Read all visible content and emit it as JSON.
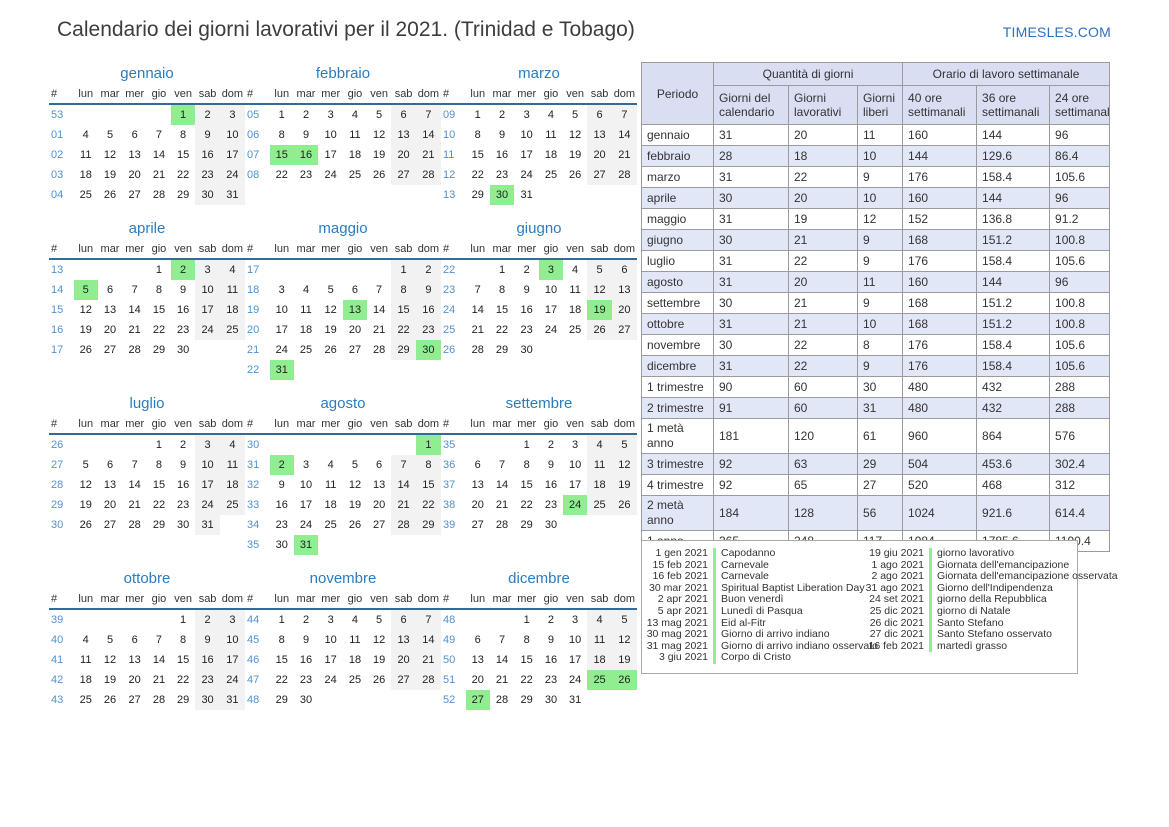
{
  "page": {
    "title": "Calendario dei giorni lavorativi per il 2021. (Trinidad e Tobago)",
    "site": "TIMESLES.COM"
  },
  "colors": {
    "accent_blue": "#2a7cc0",
    "week_number_blue": "#5191d0",
    "holiday_green": "#90ee90",
    "weekend_grey": "#f2f2f2",
    "table_header_bg": "#d9def2",
    "table_alt_row_bg": "#e2e7f8",
    "header_rule": "#366a96"
  },
  "calendar": {
    "day_headers": [
      "#",
      "lun",
      "mar",
      "mer",
      "gio",
      "ven",
      "sab",
      "dom"
    ],
    "months": [
      {
        "name": "gennaio",
        "holidays": [
          1
        ],
        "weeks": [
          {
            "n": "53",
            "d": [
              null,
              null,
              null,
              null,
              1,
              2,
              3
            ]
          },
          {
            "n": "01",
            "d": [
              4,
              5,
              6,
              7,
              8,
              9,
              10
            ]
          },
          {
            "n": "02",
            "d": [
              11,
              12,
              13,
              14,
              15,
              16,
              17
            ]
          },
          {
            "n": "03",
            "d": [
              18,
              19,
              20,
              21,
              22,
              23,
              24
            ]
          },
          {
            "n": "04",
            "d": [
              25,
              26,
              27,
              28,
              29,
              30,
              31
            ]
          }
        ]
      },
      {
        "name": "febbraio",
        "holidays": [
          15,
          16
        ],
        "weeks": [
          {
            "n": "05",
            "d": [
              1,
              2,
              3,
              4,
              5,
              6,
              7
            ]
          },
          {
            "n": "06",
            "d": [
              8,
              9,
              10,
              11,
              12,
              13,
              14
            ]
          },
          {
            "n": "07",
            "d": [
              15,
              16,
              17,
              18,
              19,
              20,
              21
            ]
          },
          {
            "n": "08",
            "d": [
              22,
              23,
              24,
              25,
              26,
              27,
              28
            ]
          }
        ]
      },
      {
        "name": "marzo",
        "holidays": [
          30
        ],
        "weeks": [
          {
            "n": "09",
            "d": [
              1,
              2,
              3,
              4,
              5,
              6,
              7
            ]
          },
          {
            "n": "10",
            "d": [
              8,
              9,
              10,
              11,
              12,
              13,
              14
            ]
          },
          {
            "n": "11",
            "d": [
              15,
              16,
              17,
              18,
              19,
              20,
              21
            ]
          },
          {
            "n": "12",
            "d": [
              22,
              23,
              24,
              25,
              26,
              27,
              28
            ]
          },
          {
            "n": "13",
            "d": [
              29,
              30,
              31,
              null,
              null,
              null,
              null
            ]
          }
        ]
      },
      {
        "name": "aprile",
        "holidays": [
          2,
          5
        ],
        "weeks": [
          {
            "n": "13",
            "d": [
              null,
              null,
              null,
              1,
              2,
              3,
              4
            ]
          },
          {
            "n": "14",
            "d": [
              5,
              6,
              7,
              8,
              9,
              10,
              11
            ]
          },
          {
            "n": "15",
            "d": [
              12,
              13,
              14,
              15,
              16,
              17,
              18
            ]
          },
          {
            "n": "16",
            "d": [
              19,
              20,
              21,
              22,
              23,
              24,
              25
            ]
          },
          {
            "n": "17",
            "d": [
              26,
              27,
              28,
              29,
              30,
              null,
              null
            ]
          }
        ]
      },
      {
        "name": "maggio",
        "holidays": [
          13,
          30,
          31
        ],
        "weeks": [
          {
            "n": "17",
            "d": [
              null,
              null,
              null,
              null,
              null,
              1,
              2
            ]
          },
          {
            "n": "18",
            "d": [
              3,
              4,
              5,
              6,
              7,
              8,
              9
            ]
          },
          {
            "n": "19",
            "d": [
              10,
              11,
              12,
              13,
              14,
              15,
              16
            ]
          },
          {
            "n": "20",
            "d": [
              17,
              18,
              19,
              20,
              21,
              22,
              23
            ]
          },
          {
            "n": "21",
            "d": [
              24,
              25,
              26,
              27,
              28,
              29,
              30
            ]
          },
          {
            "n": "22",
            "d": [
              31,
              null,
              null,
              null,
              null,
              null,
              null
            ]
          }
        ]
      },
      {
        "name": "giugno",
        "holidays": [
          3,
          19
        ],
        "weeks": [
          {
            "n": "22",
            "d": [
              null,
              1,
              2,
              3,
              4,
              5,
              6
            ]
          },
          {
            "n": "23",
            "d": [
              7,
              8,
              9,
              10,
              11,
              12,
              13
            ]
          },
          {
            "n": "24",
            "d": [
              14,
              15,
              16,
              17,
              18,
              19,
              20
            ]
          },
          {
            "n": "25",
            "d": [
              21,
              22,
              23,
              24,
              25,
              26,
              27
            ]
          },
          {
            "n": "26",
            "d": [
              28,
              29,
              30,
              null,
              null,
              null,
              null
            ]
          }
        ]
      },
      {
        "name": "luglio",
        "holidays": [],
        "weeks": [
          {
            "n": "26",
            "d": [
              null,
              null,
              null,
              1,
              2,
              3,
              4
            ]
          },
          {
            "n": "27",
            "d": [
              5,
              6,
              7,
              8,
              9,
              10,
              11
            ]
          },
          {
            "n": "28",
            "d": [
              12,
              13,
              14,
              15,
              16,
              17,
              18
            ]
          },
          {
            "n": "29",
            "d": [
              19,
              20,
              21,
              22,
              23,
              24,
              25
            ]
          },
          {
            "n": "30",
            "d": [
              26,
              27,
              28,
              29,
              30,
              31,
              null
            ]
          }
        ]
      },
      {
        "name": "agosto",
        "holidays": [
          1,
          2,
          31
        ],
        "weeks": [
          {
            "n": "30",
            "d": [
              null,
              null,
              null,
              null,
              null,
              null,
              1
            ]
          },
          {
            "n": "31",
            "d": [
              2,
              3,
              4,
              5,
              6,
              7,
              8
            ]
          },
          {
            "n": "32",
            "d": [
              9,
              10,
              11,
              12,
              13,
              14,
              15
            ]
          },
          {
            "n": "33",
            "d": [
              16,
              17,
              18,
              19,
              20,
              21,
              22
            ]
          },
          {
            "n": "34",
            "d": [
              23,
              24,
              25,
              26,
              27,
              28,
              29
            ]
          },
          {
            "n": "35",
            "d": [
              30,
              31,
              null,
              null,
              null,
              null,
              null
            ]
          }
        ]
      },
      {
        "name": "settembre",
        "holidays": [
          24
        ],
        "weeks": [
          {
            "n": "35",
            "d": [
              null,
              null,
              1,
              2,
              3,
              4,
              5
            ]
          },
          {
            "n": "36",
            "d": [
              6,
              7,
              8,
              9,
              10,
              11,
              12
            ]
          },
          {
            "n": "37",
            "d": [
              13,
              14,
              15,
              16,
              17,
              18,
              19
            ]
          },
          {
            "n": "38",
            "d": [
              20,
              21,
              22,
              23,
              24,
              25,
              26
            ]
          },
          {
            "n": "39",
            "d": [
              27,
              28,
              29,
              30,
              null,
              null,
              null
            ]
          }
        ]
      },
      {
        "name": "ottobre",
        "holidays": [],
        "weeks": [
          {
            "n": "39",
            "d": [
              null,
              null,
              null,
              null,
              1,
              2,
              3
            ]
          },
          {
            "n": "40",
            "d": [
              4,
              5,
              6,
              7,
              8,
              9,
              10
            ]
          },
          {
            "n": "41",
            "d": [
              11,
              12,
              13,
              14,
              15,
              16,
              17
            ]
          },
          {
            "n": "42",
            "d": [
              18,
              19,
              20,
              21,
              22,
              23,
              24
            ]
          },
          {
            "n": "43",
            "d": [
              25,
              26,
              27,
              28,
              29,
              30,
              31
            ]
          }
        ]
      },
      {
        "name": "novembre",
        "holidays": [],
        "weeks": [
          {
            "n": "44",
            "d": [
              1,
              2,
              3,
              4,
              5,
              6,
              7
            ]
          },
          {
            "n": "45",
            "d": [
              8,
              9,
              10,
              11,
              12,
              13,
              14
            ]
          },
          {
            "n": "46",
            "d": [
              15,
              16,
              17,
              18,
              19,
              20,
              21
            ]
          },
          {
            "n": "47",
            "d": [
              22,
              23,
              24,
              25,
              26,
              27,
              28
            ]
          },
          {
            "n": "48",
            "d": [
              29,
              30,
              null,
              null,
              null,
              null,
              null
            ]
          }
        ]
      },
      {
        "name": "dicembre",
        "holidays": [
          25,
          26,
          27
        ],
        "weeks": [
          {
            "n": "48",
            "d": [
              null,
              null,
              1,
              2,
              3,
              4,
              5
            ]
          },
          {
            "n": "49",
            "d": [
              6,
              7,
              8,
              9,
              10,
              11,
              12
            ]
          },
          {
            "n": "50",
            "d": [
              13,
              14,
              15,
              16,
              17,
              18,
              19
            ]
          },
          {
            "n": "51",
            "d": [
              20,
              21,
              22,
              23,
              24,
              25,
              26
            ]
          },
          {
            "n": "52",
            "d": [
              27,
              28,
              29,
              30,
              31,
              null,
              null
            ]
          }
        ]
      }
    ]
  },
  "table": {
    "period_header": "Periodo",
    "group1": "Quantità di giorni",
    "group2": "Orario di lavoro settimanale",
    "sub_headers": [
      "Giorni del calendario",
      "Giorni lavorativi",
      "Giorni liberi",
      "40 ore settimanali",
      "36 ore settimanali",
      "24 ore settimanali"
    ],
    "rows": [
      {
        "period": "gennaio",
        "values": [
          31,
          20,
          11,
          160,
          144,
          96
        ]
      },
      {
        "period": "febbraio",
        "values": [
          28,
          18,
          10,
          144,
          129.6,
          86.4
        ]
      },
      {
        "period": "marzo",
        "values": [
          31,
          22,
          9,
          176,
          158.4,
          105.6
        ]
      },
      {
        "period": "aprile",
        "values": [
          30,
          20,
          10,
          160,
          144,
          96
        ]
      },
      {
        "period": "maggio",
        "values": [
          31,
          19,
          12,
          152,
          136.8,
          91.2
        ]
      },
      {
        "period": "giugno",
        "values": [
          30,
          21,
          9,
          168,
          151.2,
          100.8
        ]
      },
      {
        "period": "luglio",
        "values": [
          31,
          22,
          9,
          176,
          158.4,
          105.6
        ]
      },
      {
        "period": "agosto",
        "values": [
          31,
          20,
          11,
          160,
          144,
          96
        ]
      },
      {
        "period": "settembre",
        "values": [
          30,
          21,
          9,
          168,
          151.2,
          100.8
        ]
      },
      {
        "period": "ottobre",
        "values": [
          31,
          21,
          10,
          168,
          151.2,
          100.8
        ]
      },
      {
        "period": "novembre",
        "values": [
          30,
          22,
          8,
          176,
          158.4,
          105.6
        ]
      },
      {
        "period": "dicembre",
        "values": [
          31,
          22,
          9,
          176,
          158.4,
          105.6
        ]
      },
      {
        "period": "1 trimestre",
        "values": [
          90,
          60,
          30,
          480,
          432,
          288
        ]
      },
      {
        "period": "2 trimestre",
        "values": [
          91,
          60,
          31,
          480,
          432,
          288
        ]
      },
      {
        "period": "1 metà anno",
        "values": [
          181,
          120,
          61,
          960,
          864,
          576
        ]
      },
      {
        "period": "3 trimestre",
        "values": [
          92,
          63,
          29,
          504,
          453.6,
          302.4
        ]
      },
      {
        "period": "4 trimestre",
        "values": [
          92,
          65,
          27,
          520,
          468,
          312
        ]
      },
      {
        "period": "2 metà anno",
        "values": [
          184,
          128,
          56,
          1024,
          921.6,
          614.4
        ]
      },
      {
        "period": "1 anno",
        "values": [
          365,
          248,
          117,
          1984,
          1785.6,
          1190.4
        ]
      }
    ]
  },
  "legend": {
    "col1": [
      {
        "date": "1 gen 2021",
        "label": "Capodanno"
      },
      {
        "date": "15 feb 2021",
        "label": "Carnevale"
      },
      {
        "date": "16 feb 2021",
        "label": "Carnevale"
      },
      {
        "date": "30 mar 2021",
        "label": "Spiritual Baptist Liberation Day"
      },
      {
        "date": "2 apr 2021",
        "label": "Buon venerdì"
      },
      {
        "date": "5 apr 2021",
        "label": "Lunedì di Pasqua"
      },
      {
        "date": "13 mag 2021",
        "label": "Eid al-Fitr"
      },
      {
        "date": "30 mag 2021",
        "label": "Giorno di arrivo indiano"
      },
      {
        "date": "31 mag 2021",
        "label": "Giorno di arrivo indiano osservato"
      },
      {
        "date": "3 giu 2021",
        "label": "Corpo di Cristo"
      }
    ],
    "col2": [
      {
        "date": "19 giu 2021",
        "label": "giorno lavorativo"
      },
      {
        "date": "1 ago 2021",
        "label": "Giornata dell'emancipazione"
      },
      {
        "date": "2 ago 2021",
        "label": "Giornata dell'emancipazione osservata"
      },
      {
        "date": "31 ago 2021",
        "label": "Giorno dell'Indipendenza"
      },
      {
        "date": "24 set 2021",
        "label": "giorno della Repubblica"
      },
      {
        "date": "25 dic 2021",
        "label": "giorno di Natale"
      },
      {
        "date": "26 dic 2021",
        "label": "Santo Stefano"
      },
      {
        "date": "27 dic 2021",
        "label": "Santo Stefano osservato"
      },
      {
        "date": "16 feb 2021",
        "label": "martedì grasso"
      }
    ]
  }
}
